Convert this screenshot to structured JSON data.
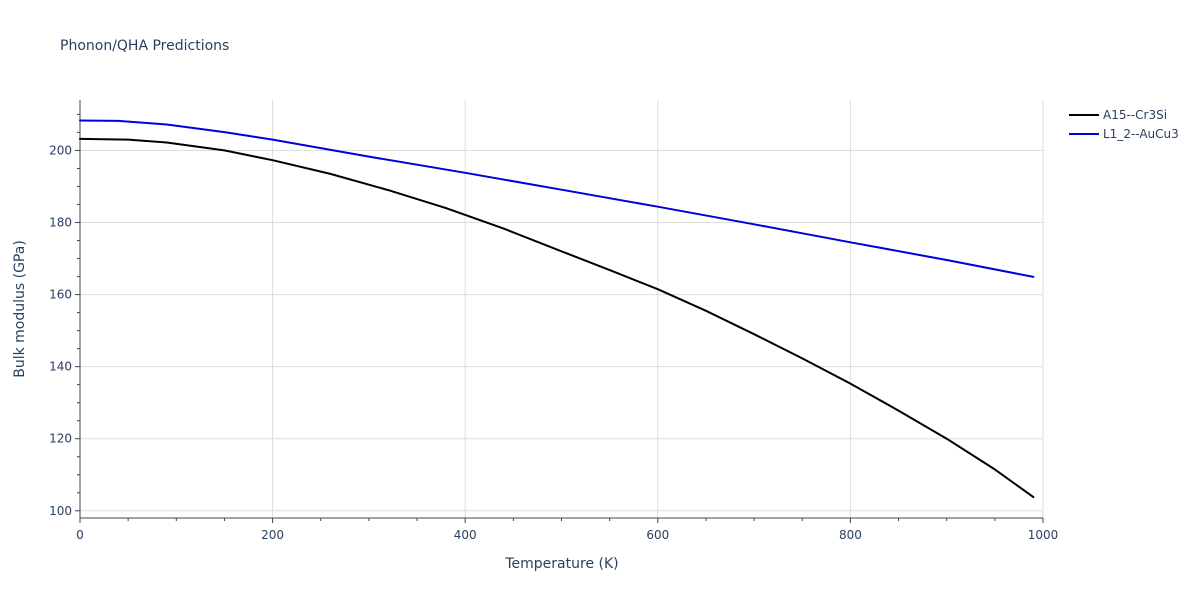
{
  "chart_data": {
    "type": "line",
    "title": "Phonon/QHA Predictions",
    "xlabel": "Temperature (K)",
    "ylabel": "Bulk modulus (GPa)",
    "xlim": [
      0,
      1000
    ],
    "ylim": [
      98,
      214
    ],
    "x_ticks": [
      0,
      200,
      400,
      600,
      800,
      1000
    ],
    "x_tick_labels": [
      "0",
      "200",
      "400",
      "600",
      "800",
      "1000"
    ],
    "x_minor_ticks": [
      50,
      100,
      150,
      250,
      300,
      350,
      450,
      500,
      550,
      650,
      700,
      750,
      850,
      900,
      950
    ],
    "y_ticks": [
      100,
      120,
      140,
      160,
      180,
      200
    ],
    "y_tick_labels": [
      "100",
      "120",
      "140",
      "160",
      "180",
      "200"
    ],
    "y_minor_ticks": [
      105,
      110,
      115,
      125,
      130,
      135,
      145,
      150,
      155,
      165,
      170,
      175,
      185,
      190,
      195,
      205,
      210
    ],
    "grid": true,
    "legend_position": "top-right",
    "series": [
      {
        "name": "A15--Cr3Si",
        "color": "#000000",
        "x": [
          0,
          50,
          90,
          150,
          200,
          260,
          320,
          380,
          440,
          500,
          550,
          600,
          650,
          700,
          750,
          800,
          850,
          900,
          950,
          990
        ],
        "y": [
          203.2,
          203.0,
          202.2,
          200.0,
          197.3,
          193.5,
          189.0,
          184.0,
          178.3,
          172.0,
          166.8,
          161.5,
          155.5,
          149.0,
          142.3,
          135.3,
          127.8,
          120.0,
          111.5,
          103.8
        ]
      },
      {
        "name": "L1_2--AuCu3",
        "color": "#0000dd",
        "x": [
          0,
          40,
          90,
          150,
          200,
          300,
          400,
          500,
          600,
          700,
          800,
          900,
          990
        ],
        "y": [
          208.3,
          208.2,
          207.2,
          205.1,
          203.0,
          198.3,
          193.8,
          189.1,
          184.4,
          179.5,
          174.5,
          169.6,
          164.9
        ]
      }
    ]
  }
}
